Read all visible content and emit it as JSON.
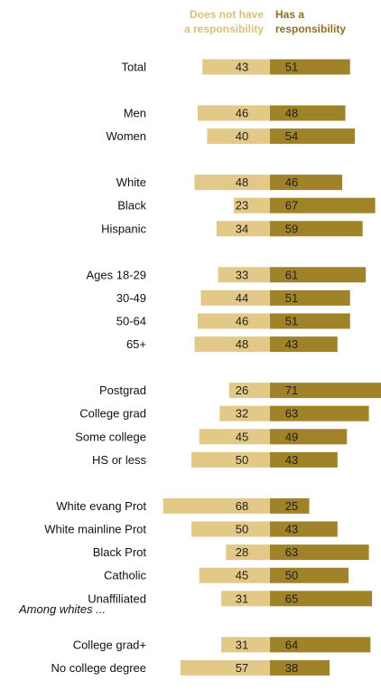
{
  "chart_data": {
    "type": "bar",
    "stacking": "diverging",
    "legend_placement": "top",
    "grid": false,
    "colors": {
      "does_not_have": "#e2c987",
      "has": "#a08228",
      "legend_does_not_have": "#d8bf7c",
      "legend_has": "#8d7120"
    },
    "series": [
      {
        "name_lines": [
          "Does not have",
          "a responsibility"
        ],
        "key": "does_not_have"
      },
      {
        "name_lines": [
          "Has a",
          "responsibility"
        ],
        "key": "has"
      }
    ],
    "groups": [
      {
        "note": "",
        "rows": [
          {
            "label": "Total",
            "does_not_have": 43,
            "has": 51
          }
        ]
      },
      {
        "note": "",
        "rows": [
          {
            "label": "Men",
            "does_not_have": 46,
            "has": 48
          },
          {
            "label": "Women",
            "does_not_have": 40,
            "has": 54
          }
        ]
      },
      {
        "note": "",
        "rows": [
          {
            "label": "White",
            "does_not_have": 48,
            "has": 46
          },
          {
            "label": "Black",
            "does_not_have": 23,
            "has": 67
          },
          {
            "label": "Hispanic",
            "does_not_have": 34,
            "has": 59
          }
        ]
      },
      {
        "note": "",
        "rows": [
          {
            "label": "Ages 18-29",
            "does_not_have": 33,
            "has": 61
          },
          {
            "label": "30-49",
            "does_not_have": 44,
            "has": 51
          },
          {
            "label": "50-64",
            "does_not_have": 46,
            "has": 51
          },
          {
            "label": "65+",
            "does_not_have": 48,
            "has": 43
          }
        ]
      },
      {
        "note": "",
        "rows": [
          {
            "label": "Postgrad",
            "does_not_have": 26,
            "has": 71
          },
          {
            "label": "College grad",
            "does_not_have": 32,
            "has": 63
          },
          {
            "label": "Some college",
            "does_not_have": 45,
            "has": 49
          },
          {
            "label": "HS or less",
            "does_not_have": 50,
            "has": 43
          }
        ]
      },
      {
        "note": "",
        "rows": [
          {
            "label": "White evang Prot",
            "does_not_have": 68,
            "has": 25
          },
          {
            "label": "White mainline Prot",
            "does_not_have": 50,
            "has": 43
          },
          {
            "label": "Black Prot",
            "does_not_have": 28,
            "has": 63
          },
          {
            "label": "Catholic",
            "does_not_have": 45,
            "has": 50
          },
          {
            "label": "Unaffiliated",
            "does_not_have": 31,
            "has": 65
          }
        ]
      },
      {
        "note": "Among whites ...",
        "rows": [
          {
            "label": "College grad+",
            "does_not_have": 31,
            "has": 64
          },
          {
            "label": "No college degree",
            "does_not_have": 57,
            "has": 38
          }
        ]
      }
    ]
  }
}
